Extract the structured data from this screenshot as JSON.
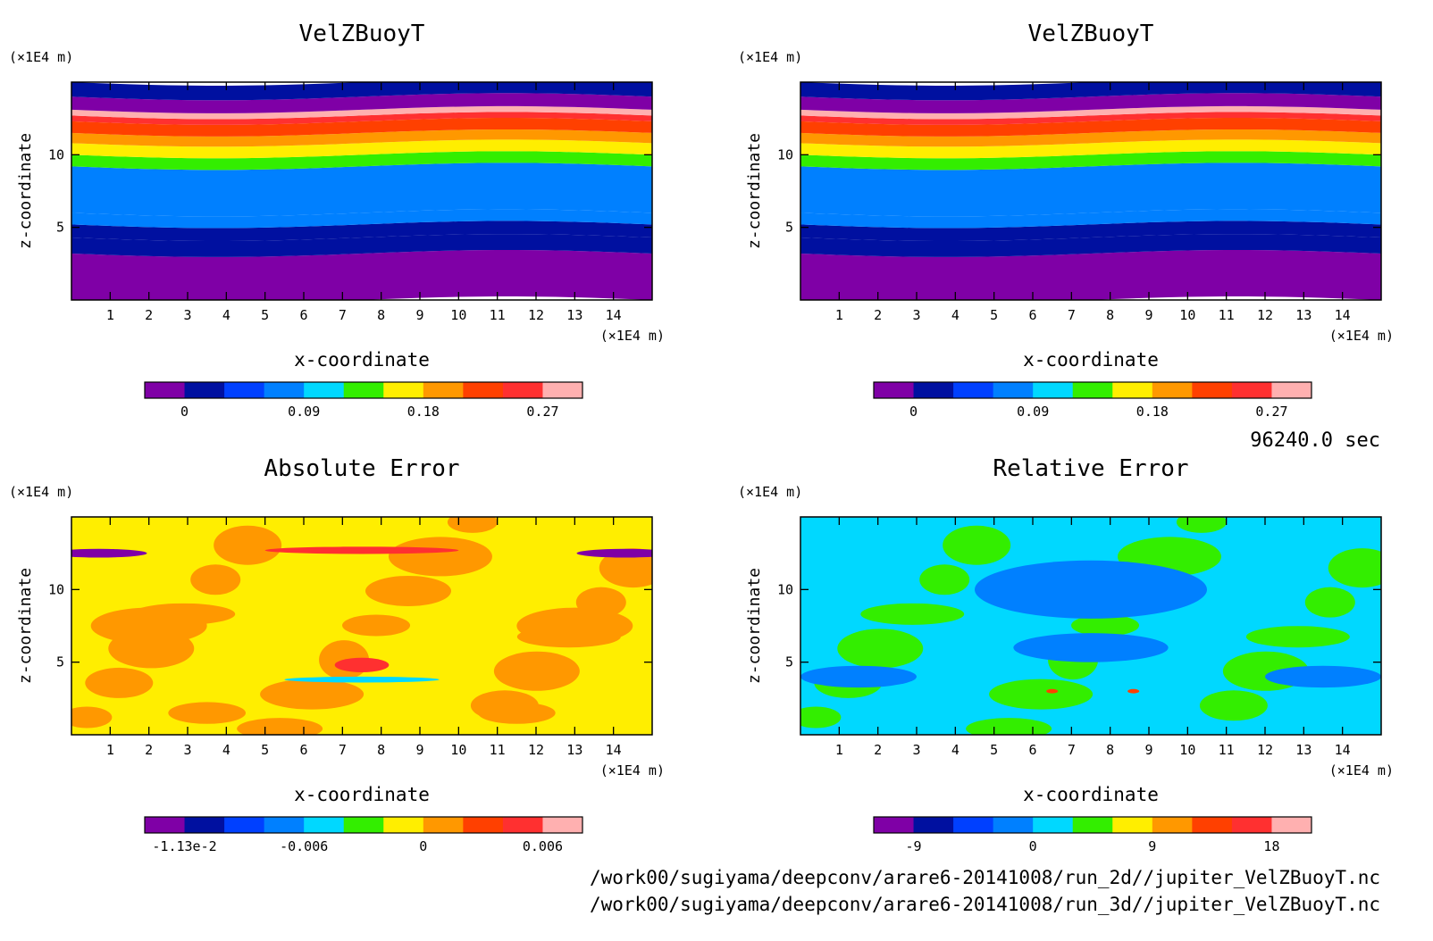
{
  "time_label": "96240.0 sec",
  "files": [
    "/work00/sugiyama/deepconv/arare6-20141008/run_2d//jupiter_VelZBuoyT.nc",
    "/work00/sugiyama/deepconv/arare6-20141008/run_3d//jupiter_VelZBuoyT.nc"
  ],
  "palette": [
    "#7f00a6",
    "#0010a0",
    "#0040ff",
    "#0080ff",
    "#00d8ff",
    "#33ee00",
    "#ffee00",
    "#ff9800",
    "#ff4000",
    "#ff3030",
    "#ffb0b0"
  ],
  "chart_data": [
    {
      "type": "heatmap",
      "title": "VelZBuoyT",
      "xlabel": "x-coordinate",
      "ylabel": "z-coordinate",
      "x_unit": "(×1E4 m)",
      "y_unit": "(×1E4 m)",
      "xlim": [
        0,
        15
      ],
      "ylim": [
        0,
        15
      ],
      "x_ticks": [
        "1",
        "2",
        "3",
        "4",
        "5",
        "6",
        "7",
        "8",
        "9",
        "10",
        "11",
        "12",
        "13",
        "14"
      ],
      "y_ticks": [
        "5",
        "10"
      ],
      "colorbar_labels": [
        "0",
        "0.09",
        "0.18",
        "0.27"
      ],
      "bands": [
        {
          "z": [
            0,
            3.2
          ],
          "value": 0.0
        },
        {
          "z": [
            3.2,
            4.3
          ],
          "value": 0.02
        },
        {
          "z": [
            4.3,
            5.2
          ],
          "value": 0.04
        },
        {
          "z": [
            5.2,
            6.0
          ],
          "value": 0.07
        },
        {
          "z": [
            6.0,
            9.2
          ],
          "value": 0.09
        },
        {
          "z": [
            9.2,
            10.0
          ],
          "value": 0.13
        },
        {
          "z": [
            10.0,
            10.8
          ],
          "value": 0.17
        },
        {
          "z": [
            10.8,
            11.5
          ],
          "value": 0.2
        },
        {
          "z": [
            11.5,
            12.3
          ],
          "value": 0.23
        },
        {
          "z": [
            12.3,
            12.7
          ],
          "value": 0.26
        },
        {
          "z": [
            12.7,
            13.1
          ],
          "value": 0.28
        },
        {
          "z": [
            13.1,
            14.0
          ],
          "value": 0.0
        },
        {
          "z": [
            14.0,
            15.0
          ],
          "value": 0.02
        }
      ]
    },
    {
      "type": "heatmap",
      "title": "VelZBuoyT",
      "xlabel": "x-coordinate",
      "ylabel": "z-coordinate",
      "x_unit": "(×1E4 m)",
      "y_unit": "(×1E4 m)",
      "xlim": [
        0,
        15
      ],
      "ylim": [
        0,
        15
      ],
      "x_ticks": [
        "1",
        "2",
        "3",
        "4",
        "5",
        "6",
        "7",
        "8",
        "9",
        "10",
        "11",
        "12",
        "13",
        "14"
      ],
      "y_ticks": [
        "5",
        "10"
      ],
      "colorbar_labels": [
        "0",
        "0.09",
        "0.18",
        "0.27"
      ],
      "bands": [
        {
          "z": [
            0,
            3.2
          ],
          "value": 0.0
        },
        {
          "z": [
            3.2,
            4.3
          ],
          "value": 0.02
        },
        {
          "z": [
            4.3,
            5.2
          ],
          "value": 0.04
        },
        {
          "z": [
            5.2,
            6.0
          ],
          "value": 0.07
        },
        {
          "z": [
            6.0,
            9.2
          ],
          "value": 0.09
        },
        {
          "z": [
            9.2,
            10.0
          ],
          "value": 0.13
        },
        {
          "z": [
            10.0,
            10.8
          ],
          "value": 0.17
        },
        {
          "z": [
            10.8,
            11.5
          ],
          "value": 0.2
        },
        {
          "z": [
            11.5,
            12.3
          ],
          "value": 0.23
        },
        {
          "z": [
            12.3,
            12.7
          ],
          "value": 0.26
        },
        {
          "z": [
            12.7,
            13.1
          ],
          "value": 0.28
        },
        {
          "z": [
            13.1,
            14.0
          ],
          "value": 0.0
        },
        {
          "z": [
            14.0,
            15.0
          ],
          "value": 0.02
        }
      ]
    },
    {
      "type": "heatmap",
      "title": "Absolute Error",
      "xlabel": "x-coordinate",
      "ylabel": "z-coordinate",
      "x_unit": "(×1E4 m)",
      "y_unit": "(×1E4 m)",
      "xlim": [
        0,
        15
      ],
      "ylim": [
        0,
        15
      ],
      "x_ticks": [
        "1",
        "2",
        "3",
        "4",
        "5",
        "6",
        "7",
        "8",
        "9",
        "10",
        "11",
        "12",
        "13",
        "14"
      ],
      "y_ticks": [
        "5",
        "10"
      ],
      "colorbar_labels": [
        "-1.13e-2",
        "-0.006",
        "0",
        "0.006"
      ],
      "background_value": 0.0,
      "blobs": [
        {
          "x": 0.7,
          "z": 12.5,
          "w": 2.5,
          "h": 0.6,
          "value": -0.011
        },
        {
          "x": 14.3,
          "z": 12.5,
          "w": 2.5,
          "h": 0.6,
          "value": -0.011
        },
        {
          "x": 7.5,
          "z": 12.7,
          "w": 5.0,
          "h": 0.5,
          "value": 0.006
        },
        {
          "x": 7.5,
          "z": 4.8,
          "w": 1.4,
          "h": 1.0,
          "value": 0.007
        },
        {
          "x": 7.5,
          "z": 3.8,
          "w": 4.0,
          "h": 0.4,
          "value": -0.004
        },
        {
          "x": 2.0,
          "z": 7.5,
          "w": 3.0,
          "h": 2.5,
          "value": 0.002
        },
        {
          "x": 13.0,
          "z": 7.5,
          "w": 3.0,
          "h": 2.5,
          "value": 0.002
        },
        {
          "x": 3.5,
          "z": 1.5,
          "w": 2.0,
          "h": 1.5,
          "value": 0.003
        },
        {
          "x": 11.5,
          "z": 1.5,
          "w": 2.0,
          "h": 1.5,
          "value": 0.003
        }
      ]
    },
    {
      "type": "heatmap",
      "title": "Relative Error",
      "xlabel": "x-coordinate",
      "ylabel": "z-coordinate",
      "x_unit": "(×1E4 m)",
      "y_unit": "(×1E4 m)",
      "xlim": [
        0,
        15
      ],
      "ylim": [
        0,
        15
      ],
      "x_ticks": [
        "1",
        "2",
        "3",
        "4",
        "5",
        "6",
        "7",
        "8",
        "9",
        "10",
        "11",
        "12",
        "13",
        "14"
      ],
      "y_ticks": [
        "5",
        "10"
      ],
      "colorbar_labels": [
        "-9",
        "0",
        "9",
        "18"
      ],
      "background_value": 0.0,
      "blobs": [
        {
          "x": 7.5,
          "z": 10.0,
          "w": 6.0,
          "h": 4.0,
          "value": -3.0
        },
        {
          "x": 7.5,
          "z": 6.0,
          "w": 4.0,
          "h": 2.0,
          "value": -3.0
        },
        {
          "x": 1.5,
          "z": 4.0,
          "w": 3.0,
          "h": 1.5,
          "value": -3.0
        },
        {
          "x": 13.5,
          "z": 4.0,
          "w": 3.0,
          "h": 1.5,
          "value": -3.0
        },
        {
          "x": 6.5,
          "z": 3.0,
          "w": 0.3,
          "h": 0.3,
          "value": 12.0
        },
        {
          "x": 8.6,
          "z": 3.0,
          "w": 0.3,
          "h": 0.3,
          "value": 12.0
        }
      ]
    }
  ]
}
